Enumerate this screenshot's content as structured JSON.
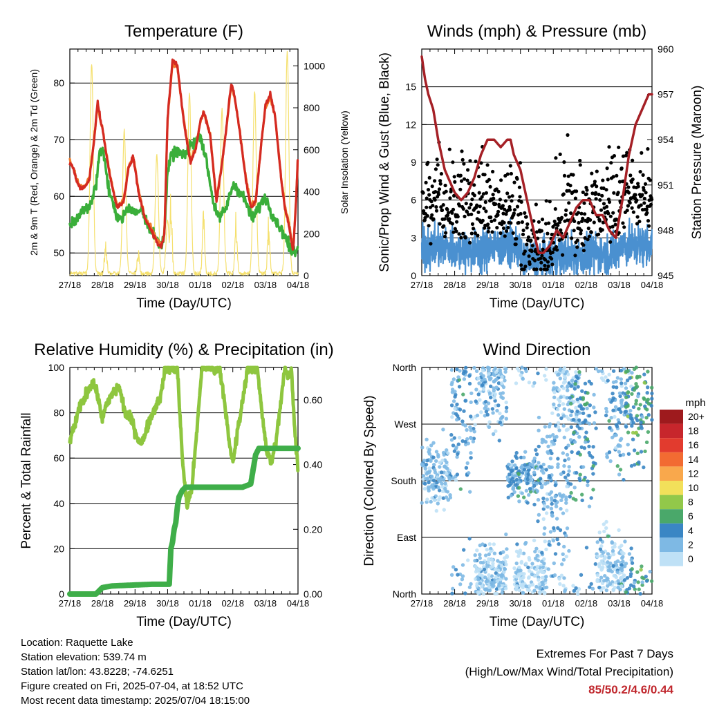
{
  "colors": {
    "temp_red": "#d42a22",
    "temp_orange": "#ef7a2a",
    "dewpoint_green": "#3aae3a",
    "solar_yellow": "#f5e06e",
    "wind_blue": "#4a90d0",
    "gust_black": "#000000",
    "pressure_maroon": "#a52026",
    "rh_lightgreen": "#8ec63f",
    "precip_green": "#3fae49",
    "extremes_red": "#c0272d"
  },
  "time_ticks": [
    "27/18",
    "28/18",
    "29/18",
    "30/18",
    "01/18",
    "02/18",
    "03/18",
    "04/18"
  ],
  "xlabel": "Time (Day/UTC)",
  "chart_data": [
    {
      "id": "temperature",
      "type": "line",
      "title": "Temperature (F)",
      "xlabel": "Time (Day/UTC)",
      "ylabel": "2m & 9m T (Red, Orange) & 2m Td (Green)",
      "y2label": "Solar Insolation (Yellow)",
      "ylim": [
        46,
        86
      ],
      "yticks": [
        50,
        60,
        70,
        80
      ],
      "y2lim": [
        0,
        1080
      ],
      "y2ticks": [
        0,
        200,
        400,
        600,
        800,
        1000
      ],
      "grid": true,
      "series": [
        {
          "role": "2m T",
          "color": "red",
          "x": [
            0,
            0.1,
            0.2,
            0.3,
            0.45,
            0.6,
            0.75,
            0.85,
            0.95,
            1.0,
            1.1,
            1.25,
            1.45,
            1.65,
            1.8,
            1.95,
            2.0,
            2.1,
            2.3,
            2.5,
            2.65,
            2.8,
            2.9,
            3.0,
            3.15,
            3.3,
            3.5,
            3.7,
            3.85,
            4.0,
            4.1,
            4.3,
            4.5,
            4.65,
            4.8,
            4.95,
            5.05,
            5.2,
            5.4,
            5.55,
            5.7,
            5.85,
            6.0,
            6.15,
            6.3,
            6.5,
            6.6,
            6.75,
            6.85,
            6.95,
            7.0
          ],
          "y": [
            66,
            65,
            63,
            61.5,
            61.5,
            63,
            70,
            77,
            73,
            72,
            68,
            63,
            58,
            59,
            65,
            67,
            65,
            61,
            56,
            54,
            52,
            51,
            53,
            74,
            84,
            83,
            73,
            66,
            68,
            73,
            75,
            71,
            59,
            65,
            72,
            80,
            78,
            72,
            63,
            58,
            59,
            68,
            76,
            78,
            74,
            62,
            58,
            54,
            50,
            60,
            68
          ]
        },
        {
          "role": "9m T",
          "color": "orange",
          "x": [
            0,
            0.1,
            0.2,
            0.3,
            0.45,
            0.6,
            0.75,
            0.85,
            0.95,
            1.0,
            1.1,
            1.25,
            1.45,
            1.65,
            1.8,
            1.95,
            2.0,
            2.1,
            2.3,
            2.5,
            2.65,
            2.8,
            2.9,
            3.0,
            3.15,
            3.3,
            3.5,
            3.7,
            3.85,
            4.0,
            4.1,
            4.3,
            4.5,
            4.65,
            4.8,
            4.95,
            5.05,
            5.2,
            5.4,
            5.55,
            5.7,
            5.85,
            6.0,
            6.15,
            6.3,
            6.5,
            6.6,
            6.75,
            6.85,
            6.95,
            7.0
          ],
          "y": [
            66.3,
            65.2,
            63.2,
            61.8,
            61.8,
            63.2,
            70.3,
            76.5,
            72.8,
            72.2,
            68.2,
            63.3,
            58.3,
            59.3,
            65.2,
            66.8,
            65.2,
            61.3,
            56.3,
            54.3,
            52.4,
            51.4,
            53.2,
            73.5,
            83.5,
            82.7,
            73.2,
            66.3,
            68.2,
            73.2,
            74.8,
            71.2,
            59.4,
            65.1,
            71.8,
            79.5,
            77.6,
            72.1,
            63.3,
            58.4,
            59.3,
            68.1,
            75.6,
            77.6,
            74.1,
            62.4,
            58.4,
            54.4,
            50.6,
            60.3,
            67.6
          ]
        },
        {
          "role": "2m Td",
          "color": "green",
          "x": [
            0,
            0.2,
            0.4,
            0.6,
            0.8,
            0.9,
            1.0,
            1.1,
            1.2,
            1.4,
            1.6,
            1.8,
            2.0,
            2.2,
            2.4,
            2.6,
            2.8,
            2.9,
            3.0,
            3.1,
            3.3,
            3.5,
            3.7,
            3.9,
            4.0,
            4.2,
            4.4,
            4.6,
            4.8,
            5.0,
            5.2,
            5.4,
            5.6,
            5.8,
            6.0,
            6.2,
            6.4,
            6.6,
            6.8,
            7.0
          ],
          "y": [
            55,
            56,
            57.5,
            58,
            62,
            67,
            69,
            65,
            61,
            57,
            56,
            58,
            57,
            58,
            55,
            53,
            51,
            54,
            64,
            67,
            68,
            67,
            69,
            70,
            71,
            66,
            59,
            56,
            58,
            62,
            61,
            59,
            56,
            58,
            60,
            57,
            55,
            53,
            50,
            51
          ]
        },
        {
          "role": "Solar",
          "color": "yellow",
          "axis": "y2",
          "peaks": [
            {
              "x": 0.67,
              "v": 1000
            },
            {
              "x": 1.67,
              "v": 680
            },
            {
              "x": 2.67,
              "v": 560
            },
            {
              "x": 3.0,
              "v": 250
            },
            {
              "x": 3.67,
              "v": 860
            },
            {
              "x": 4.67,
              "v": 780
            },
            {
              "x": 5.67,
              "v": 870
            },
            {
              "x": 6.67,
              "v": 1060
            }
          ],
          "baseline_noise": [
            {
              "x": 1.1,
              "v": 180
            },
            {
              "x": 2.1,
              "v": 120
            },
            {
              "x": 3.1,
              "v": 420
            },
            {
              "x": 4.1,
              "v": 380
            },
            {
              "x": 5.1,
              "v": 300
            },
            {
              "x": 6.1,
              "v": 280
            }
          ]
        }
      ]
    },
    {
      "id": "winds",
      "type": "scatter",
      "title": "Winds (mph) & Pressure (mb)",
      "xlabel": "Time (Day/UTC)",
      "ylabel": "Sonic/Prop Wind & Gust (Blue, Black)",
      "y2label": "Station Pressure (Maroon)",
      "ylim": [
        0,
        18
      ],
      "yticks": [
        0,
        3,
        6,
        9,
        12,
        15
      ],
      "y2lim": [
        945,
        960
      ],
      "y2ticks": [
        945,
        948,
        951,
        954,
        957,
        960
      ],
      "grid": true,
      "series": [
        {
          "role": "Pressure",
          "color": "maroon",
          "axis": "y2",
          "x": [
            0,
            0.1,
            0.2,
            0.35,
            0.5,
            0.7,
            0.9,
            1.0,
            1.2,
            1.4,
            1.6,
            1.8,
            2.0,
            2.2,
            2.4,
            2.6,
            2.7,
            2.8,
            3.0,
            3.2,
            3.3,
            3.4,
            3.55,
            3.7,
            3.9,
            4.1,
            4.3,
            4.5,
            4.7,
            4.9,
            5.1,
            5.3,
            5.5,
            5.7,
            5.9,
            6.1,
            6.3,
            6.5,
            6.7,
            6.9,
            7.0
          ],
          "y": [
            959.5,
            958,
            957,
            956,
            954,
            952,
            951,
            950.5,
            950,
            950.5,
            951.5,
            953,
            954,
            954,
            953.5,
            954,
            954,
            953,
            952,
            950,
            949,
            948,
            946.5,
            946.5,
            947,
            948,
            947.5,
            948.5,
            949.5,
            950,
            950,
            949,
            949,
            948,
            947.5,
            950,
            953,
            955,
            956,
            957,
            957
          ]
        },
        {
          "role": "Wind",
          "color": "blue",
          "mean_by_day": [
            2.2,
            2.0,
            2.3,
            1.2,
            1.6,
            1.8,
            2.4
          ],
          "noise": 0.8
        },
        {
          "role": "Gust",
          "color": "black",
          "mean_by_day": [
            5.5,
            5.5,
            5.0,
            2.0,
            4.5,
            5.0,
            6.5
          ],
          "noise": 2.2
        }
      ]
    },
    {
      "id": "rh_precip",
      "type": "line",
      "title": "Relative Humidity (%) & Precipitation (in)",
      "xlabel": "Time (Day/UTC)",
      "ylabel": "Percent & Total Rainfall",
      "ylim": [
        0,
        100
      ],
      "yticks": [
        0,
        20,
        40,
        60,
        80,
        100
      ],
      "y2lim": [
        0,
        0.7
      ],
      "y2ticks": [
        "0.00",
        "0.20",
        "0.40",
        "0.60"
      ],
      "grid": true,
      "series": [
        {
          "role": "RH",
          "color": "lightgreen",
          "x": [
            0,
            0.1,
            0.3,
            0.5,
            0.7,
            0.85,
            0.95,
            1.0,
            1.15,
            1.3,
            1.5,
            1.7,
            1.9,
            2.05,
            2.2,
            2.4,
            2.6,
            2.8,
            2.9,
            3.0,
            3.15,
            3.3,
            3.45,
            3.6,
            3.75,
            3.9,
            4.05,
            4.2,
            4.35,
            4.5,
            4.6,
            4.75,
            4.9,
            5.0,
            5.15,
            5.3,
            5.45,
            5.6,
            5.75,
            5.9,
            6.05,
            6.2,
            6.35,
            6.5,
            6.6,
            6.7,
            6.8,
            6.9,
            7.0
          ],
          "y": [
            68,
            72,
            82,
            88,
            94,
            88,
            80,
            78,
            84,
            88,
            92,
            80,
            77,
            70,
            66,
            75,
            82,
            88,
            98,
            100,
            99,
            100,
            60,
            38,
            48,
            72,
            100,
            100,
            100,
            99,
            100,
            85,
            65,
            58,
            72,
            85,
            100,
            99,
            100,
            80,
            62,
            58,
            70,
            88,
            100,
            95,
            100,
            72,
            55
          ]
        },
        {
          "role": "Precip",
          "color": "green",
          "axis": "y2",
          "x": [
            0,
            0.8,
            0.9,
            1.0,
            1.3,
            2.0,
            2.5,
            3.05,
            3.1,
            3.15,
            3.2,
            3.25,
            3.3,
            3.35,
            3.45,
            3.55,
            3.7,
            4.0,
            4.5,
            5.0,
            5.3,
            5.55,
            5.6,
            5.65,
            5.7,
            5.8,
            6.0,
            6.5,
            7.0
          ],
          "y": [
            0,
            0,
            0.01,
            0.02,
            0.025,
            0.028,
            0.03,
            0.03,
            0.14,
            0.16,
            0.2,
            0.22,
            0.27,
            0.3,
            0.32,
            0.33,
            0.33,
            0.33,
            0.33,
            0.33,
            0.33,
            0.34,
            0.37,
            0.4,
            0.43,
            0.45,
            0.45,
            0.45,
            0.45
          ]
        }
      ]
    },
    {
      "id": "wind_direction",
      "type": "scatter",
      "title": "Wind Direction",
      "xlabel": "Time (Day/UTC)",
      "ylabel": "Direction (Colored By Speed)",
      "ylim": [
        0,
        360
      ],
      "yticks": [
        "North",
        "East",
        "South",
        "West",
        "North"
      ],
      "grid": true,
      "legend": {
        "title": "mph",
        "placement": "right",
        "entries": [
          {
            "label": "20+",
            "color": "#9e1a1d"
          },
          {
            "label": "18",
            "color": "#c7262c"
          },
          {
            "label": "16",
            "color": "#e23b2e"
          },
          {
            "label": "14",
            "color": "#f26b32"
          },
          {
            "label": "12",
            "color": "#f9a84c"
          },
          {
            "label": "10",
            "color": "#f2e05a"
          },
          {
            "label": "8",
            "color": "#92c84a"
          },
          {
            "label": "6",
            "color": "#4aa86a"
          },
          {
            "label": "4",
            "color": "#3a86c4"
          },
          {
            "label": "2",
            "color": "#7eb9e4"
          },
          {
            "label": "0",
            "color": "#bfe1f6"
          }
        ]
      },
      "clusters": [
        {
          "x0": 0.0,
          "x1": 0.9,
          "dir_mean": 190,
          "dir_spread": 25,
          "speed": 2
        },
        {
          "x0": 0.9,
          "x1": 1.6,
          "dir_mean": 290,
          "dir_spread": 70,
          "speed": 3
        },
        {
          "x0": 1.6,
          "x1": 2.6,
          "dir_mean": 340,
          "dir_spread": 40,
          "speed": 2
        },
        {
          "x0": 1.6,
          "x1": 2.6,
          "dir_mean": 30,
          "dir_spread": 25,
          "speed": 1
        },
        {
          "x0": 2.6,
          "x1": 3.5,
          "dir_mean": 190,
          "dir_spread": 20,
          "speed": 3
        },
        {
          "x0": 2.8,
          "x1": 3.8,
          "dir_mean": 30,
          "dir_spread": 25,
          "speed": 1
        },
        {
          "x0": 3.5,
          "x1": 4.5,
          "dir_mean": 170,
          "dir_spread": 60,
          "speed": 2
        },
        {
          "x0": 4.0,
          "x1": 4.8,
          "dir_mean": 330,
          "dir_spread": 40,
          "speed": 1
        },
        {
          "x0": 4.5,
          "x1": 5.3,
          "dir_mean": 270,
          "dir_spread": 60,
          "speed": 4
        },
        {
          "x0": 5.3,
          "x1": 6.2,
          "dir_mean": 40,
          "dir_spread": 30,
          "speed": 1
        },
        {
          "x0": 5.6,
          "x1": 6.4,
          "dir_mean": 300,
          "dir_spread": 60,
          "speed": 3
        },
        {
          "x0": 6.2,
          "x1": 7.0,
          "dir_mean": 320,
          "dir_spread": 50,
          "speed": 5
        }
      ]
    }
  ],
  "footer": {
    "location": "Location: Raquette Lake",
    "elevation": "Station elevation: 539.74 m",
    "latlon": "Station lat/lon: 43.8228; -74.6251",
    "created": "Figure created on Fri, 2025-07-04, at 18:52 UTC",
    "timestamp": "Most recent data timestamp: 2025/07/04 18:15:00"
  },
  "extremes": {
    "title": "Extremes For Past 7 Days",
    "subtitle": "(High/Low/Max Wind/Total Precipitation)",
    "values": "85/50.2/4.6/0.44"
  }
}
